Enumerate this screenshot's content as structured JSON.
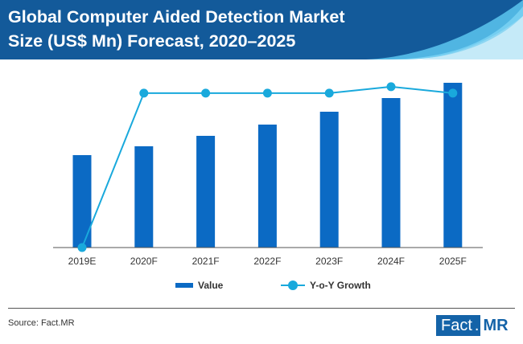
{
  "header": {
    "title_line1": "Global Computer Aided Detection Market",
    "title_line2": "Size (US$ Mn) Forecast, 2020–2025"
  },
  "colors": {
    "header_dark": "#135a9a",
    "header_light": "#5cc6ee",
    "bar": "#0b6ac4",
    "line": "#19a9dc"
  },
  "chart_data": {
    "type": "bar",
    "categories": [
      "2019E",
      "2020F",
      "2021F",
      "2022F",
      "2023F",
      "2024F",
      "2025F"
    ],
    "series": [
      {
        "name": "Value",
        "type": "bar",
        "values": [
          115,
          126,
          139,
          153,
          169,
          186,
          205
        ]
      },
      {
        "name": "Y-o-Y Growth",
        "type": "line",
        "values": [
          0,
          9.7,
          9.7,
          9.7,
          9.7,
          10.1,
          9.7
        ]
      }
    ],
    "ylim": [
      0,
      210
    ],
    "y2lim": [
      0,
      10.6
    ],
    "grid": false,
    "legend": "bottom"
  },
  "legend": {
    "value_label": "Value",
    "growth_label": "Y-o-Y Growth"
  },
  "footer": {
    "source": "Source: Fact.MR"
  },
  "logo": {
    "fact": "Fact",
    "dot": ".",
    "mr": "MR"
  }
}
